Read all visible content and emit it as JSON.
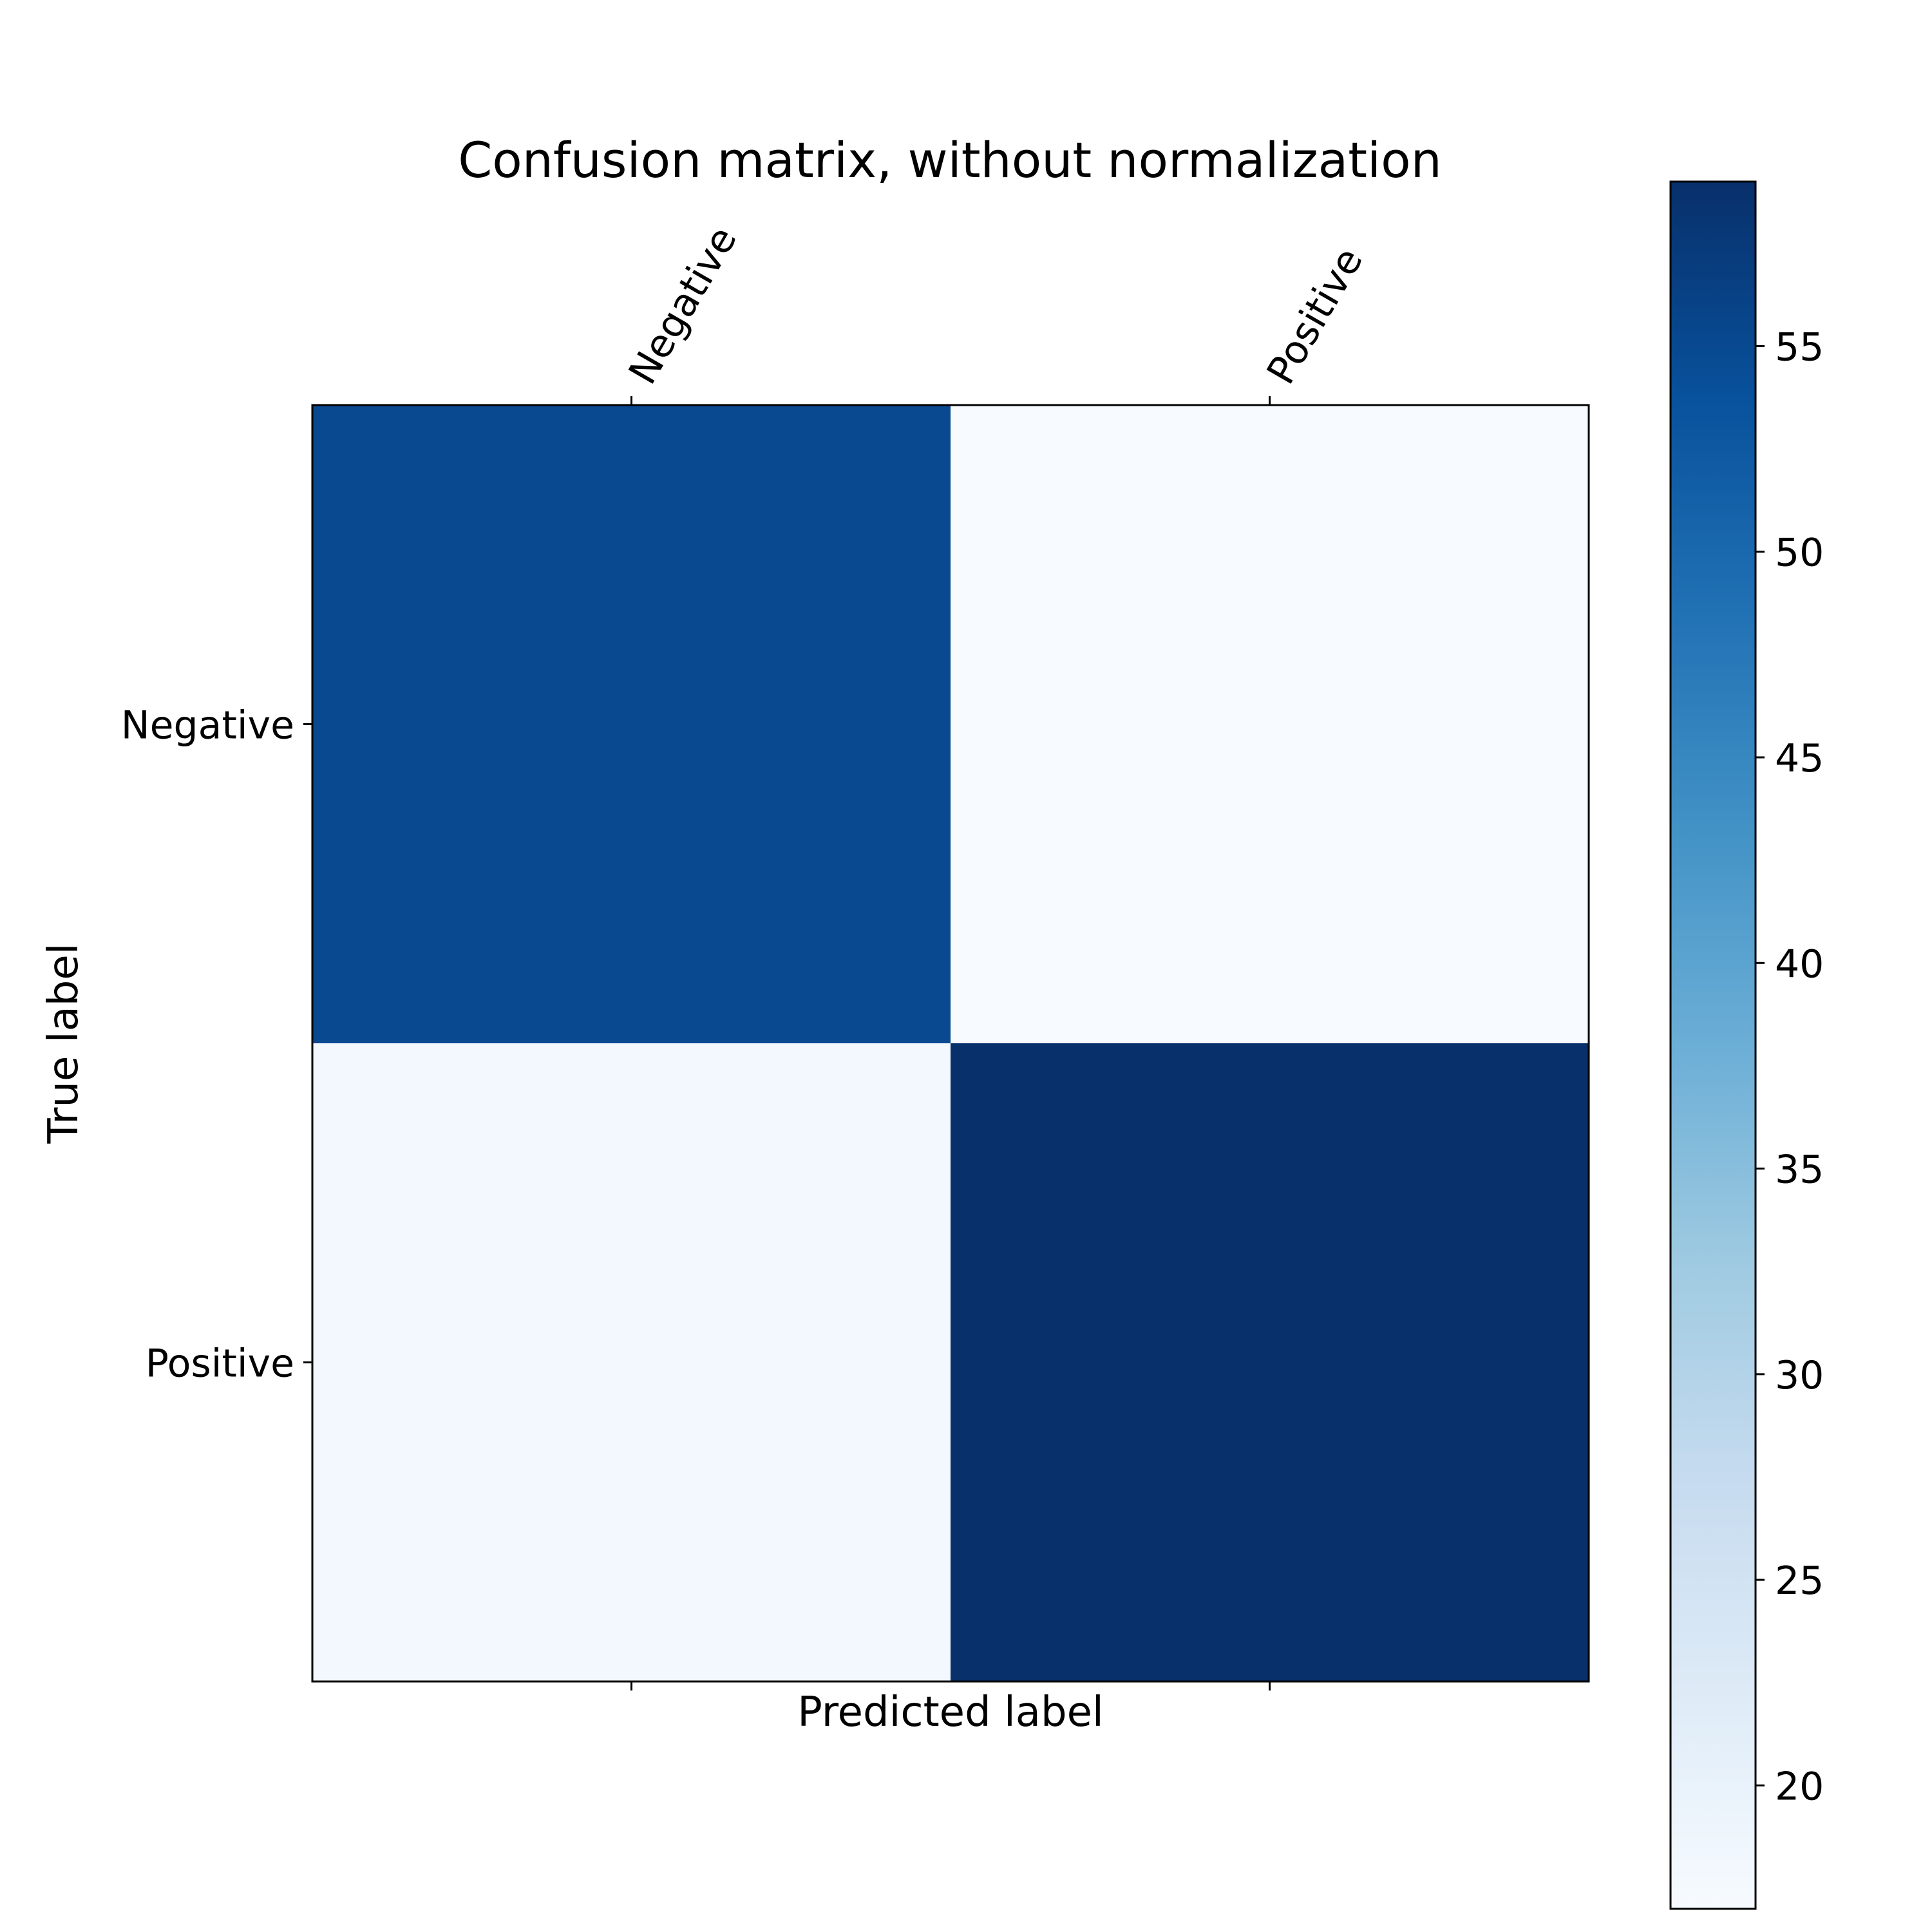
{
  "chart_data": {
    "type": "heatmap",
    "title": "Confusion matrix, without normalization",
    "xlabel": "Predicted label",
    "ylabel": "True label",
    "x_categories": [
      "Negative",
      "Positive"
    ],
    "y_categories": [
      "Negative",
      "Positive"
    ],
    "matrix": [
      [
        55,
        17
      ],
      [
        18,
        59
      ]
    ],
    "colormap": "Blues",
    "color_range": [
      17,
      59
    ],
    "colorbar": {
      "ticks": [
        20,
        25,
        30,
        35,
        40,
        45,
        50,
        55
      ],
      "labels": [
        "20",
        "25",
        "30",
        "35",
        "40",
        "45",
        "50",
        "55"
      ]
    },
    "x_tick_position": "top",
    "x_tick_rotation_deg": 60,
    "grid": false,
    "cell_annotations": false
  }
}
